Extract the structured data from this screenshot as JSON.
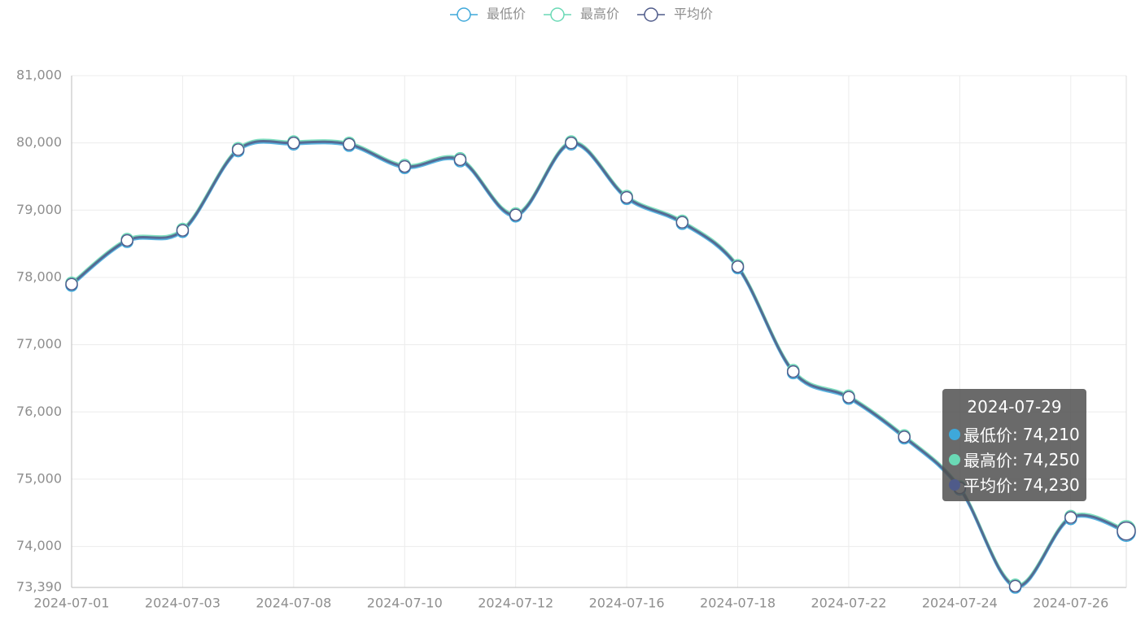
{
  "chart_data": {
    "type": "line",
    "categories": [
      "2024-07-01",
      null,
      "2024-07-03",
      null,
      "2024-07-08",
      null,
      "2024-07-10",
      null,
      "2024-07-12",
      null,
      "2024-07-16",
      null,
      "2024-07-18",
      null,
      "2024-07-22",
      null,
      "2024-07-24",
      null,
      "2024-07-26",
      "2024-07-29"
    ],
    "series": [
      {
        "name": "最低价",
        "color": "#3ea8da",
        "values": [
          77880,
          78530,
          78680,
          79880,
          79980,
          79960,
          79630,
          79730,
          78910,
          79980,
          79170,
          78800,
          78140,
          76580,
          76200,
          75610,
          74850,
          73390,
          74410,
          74210
        ],
        "value_labels": [
          null,
          null,
          null,
          null,
          null,
          null,
          null,
          null,
          null,
          null,
          null,
          null,
          null,
          null,
          null,
          null,
          null,
          null,
          null,
          "74,210"
        ]
      },
      {
        "name": "最高价",
        "color": "#6ad9b5",
        "values": [
          77920,
          78570,
          78720,
          79920,
          80020,
          80000,
          79670,
          79770,
          78950,
          80020,
          79210,
          78840,
          78180,
          76620,
          76240,
          75650,
          74890,
          73430,
          74450,
          74250
        ],
        "value_labels": [
          null,
          null,
          null,
          null,
          null,
          null,
          null,
          null,
          null,
          null,
          null,
          null,
          null,
          null,
          null,
          null,
          null,
          null,
          null,
          "74,250"
        ]
      },
      {
        "name": "平均价",
        "color": "#4f5b8a",
        "values": [
          77900,
          78550,
          78700,
          79900,
          80000,
          79980,
          79650,
          79750,
          78930,
          80000,
          79190,
          78820,
          78160,
          76600,
          76220,
          75630,
          74870,
          73410,
          74430,
          74230
        ],
        "value_labels": [
          null,
          null,
          null,
          null,
          null,
          null,
          null,
          null,
          null,
          null,
          null,
          null,
          null,
          null,
          null,
          null,
          null,
          null,
          null,
          "74,230"
        ]
      }
    ],
    "ylim": [
      73390,
      81000
    ],
    "yticks": [
      {
        "value": 73390,
        "label": "73,390"
      },
      {
        "value": 74000,
        "label": "74,000"
      },
      {
        "value": 75000,
        "label": "75,000"
      },
      {
        "value": 76000,
        "label": "76,000"
      },
      {
        "value": 77000,
        "label": "77,000"
      },
      {
        "value": 78000,
        "label": "78,000"
      },
      {
        "value": 79000,
        "label": "79,000"
      },
      {
        "value": 80000,
        "label": "80,000"
      },
      {
        "value": 81000,
        "label": "81,000"
      }
    ],
    "grid": true,
    "smooth": true,
    "legend": "top",
    "tooltip_separator": ":"
  }
}
